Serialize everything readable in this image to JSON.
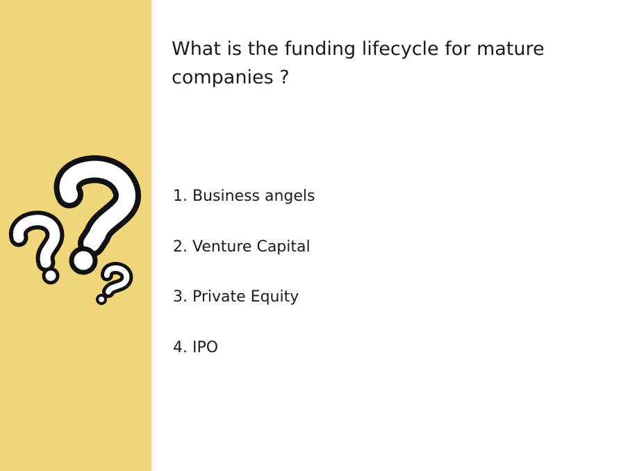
{
  "slide": {
    "title": "What is the funding  lifecycle for mature companies ?",
    "items": [
      "1. Business angels",
      "2. Venture Capital",
      "3. Private Equity",
      "4. IPO"
    ]
  },
  "colors": {
    "sidebar": "#f0d57b",
    "text": "#1a1a1a"
  },
  "illustration": {
    "icon": "question-marks-icon"
  }
}
